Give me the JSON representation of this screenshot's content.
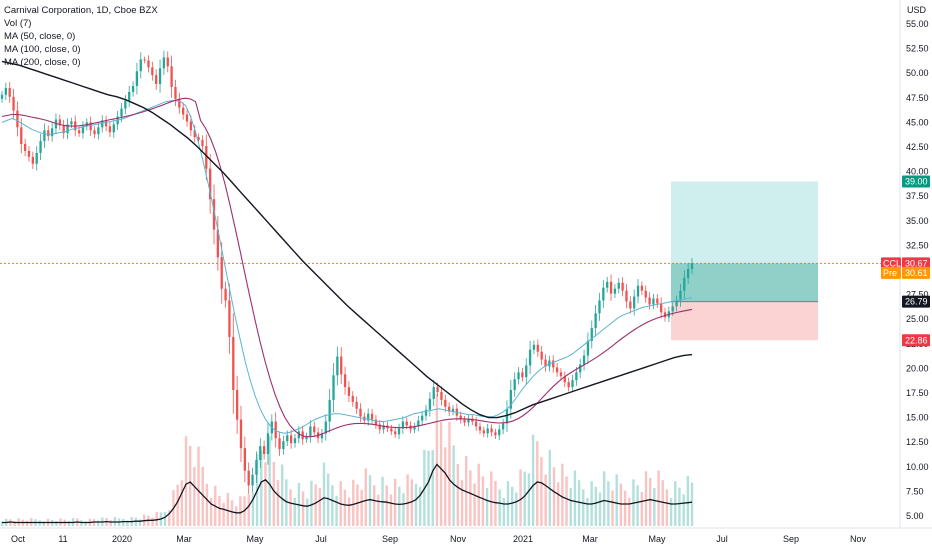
{
  "legend": {
    "title": "Carnival Corporation, 1D, Cboe BZX",
    "vol": "Vol (7)",
    "ma50": "MA (50, close, 0)",
    "ma100": "MA (100, close, 0)",
    "ma200": "MA (200, close, 0)"
  },
  "currency": "USD",
  "colors": {
    "up": "#26a69a",
    "down": "#ef5350",
    "ma50": "#5bb5d4",
    "ma100": "#9c2f6e",
    "ma200": "#131722",
    "vol_ma": "#131722",
    "profit_zone": "#cfeeee",
    "profit_zone_inner": "#8fd0c9",
    "loss_zone": "#fbd3d3",
    "price_line": "#ff6f3c"
  },
  "chart_data": {
    "type": "candlestick",
    "ylim": [
      4,
      56
    ],
    "y_ticks": [
      "55.00",
      "52.50",
      "50.00",
      "47.50",
      "45.00",
      "42.50",
      "40.00",
      "37.50",
      "35.00",
      "32.50",
      "30.00",
      "27.50",
      "25.00",
      "22.50",
      "20.00",
      "17.50",
      "15.00",
      "12.50",
      "10.00",
      "7.50",
      "5.00"
    ],
    "x_ticks": [
      "Oct",
      "11",
      "2020",
      "Mar",
      "May",
      "Jul",
      "Sep",
      "Nov",
      "2021",
      "Mar",
      "May",
      "Jul",
      "Sep",
      "Nov"
    ],
    "closes": [
      47.8,
      48.5,
      47.6,
      46.2,
      44.5,
      42.8,
      42.1,
      41.5,
      40.8,
      41.9,
      43.1,
      44.2,
      43.6,
      44.4,
      45.3,
      44.7,
      43.9,
      44.8,
      45.1,
      44.2,
      43.9,
      44.6,
      45.0,
      44.2,
      43.8,
      44.5,
      45.2,
      44.6,
      44.0,
      44.8,
      45.6,
      46.4,
      47.2,
      48.1,
      48.7,
      50.2,
      51.4,
      51.3,
      50.6,
      49.8,
      48.9,
      50.5,
      51.6,
      50.7,
      48.6,
      47.4,
      46.5,
      45.8,
      45.1,
      44.2,
      43.5,
      43.2,
      42.6,
      40.3,
      37.2,
      34.1,
      31.3,
      28.1,
      26.9,
      23.2,
      17.8,
      14.8,
      11.9,
      9.6,
      8.1,
      9.2,
      10.7,
      12.1,
      11.3,
      13.4,
      14.6,
      12.9,
      11.8,
      12.6,
      13.2,
      12.4,
      12.9,
      13.6,
      12.8,
      13.1,
      14.1,
      13.5,
      12.9,
      13.4,
      14.6,
      16.8,
      19.3,
      21.2,
      19.4,
      18.1,
      17.2,
      16.6,
      15.9,
      15.1,
      14.7,
      15.4,
      14.8,
      14.3,
      13.8,
      14.2,
      13.9,
      13.6,
      13.3,
      13.9,
      14.6,
      14.2,
      13.8,
      14.1,
      14.7,
      15.2,
      15.8,
      16.9,
      18.1,
      17.6,
      16.8,
      16.1,
      15.6,
      15.9,
      15.2,
      14.8,
      14.5,
      14.9,
      14.6,
      14.1,
      13.7,
      13.4,
      13.9,
      13.5,
      13.2,
      13.8,
      14.4,
      15.9,
      17.8,
      18.9,
      19.6,
      19.1,
      20.3,
      21.9,
      22.4,
      21.7,
      20.9,
      20.2,
      20.8,
      20.1,
      19.6,
      19.2,
      18.6,
      18.1,
      18.8,
      19.6,
      20.4,
      21.3,
      22.8,
      24.1,
      25.6,
      26.9,
      28.2,
      28.8,
      27.6,
      28.1,
      28.7,
      27.9,
      26.8,
      26.1,
      27.3,
      28.4,
      27.9,
      27.2,
      26.5,
      27.1,
      26.6,
      25.7,
      25.2,
      25.8,
      26.3,
      26.9,
      27.9,
      29.2,
      30.1,
      30.7
    ],
    "volume_index": [
      0.08,
      0.08,
      0.09,
      0.08,
      0.08,
      0.08,
      0.08,
      0.08,
      0.08,
      0.08,
      0.08,
      0.08,
      0.08,
      0.08,
      0.08,
      0.08,
      0.08,
      0.08,
      0.09,
      0.08,
      0.08,
      0.08,
      0.09,
      0.09,
      0.09,
      0.1,
      0.09,
      0.09,
      0.09,
      0.1,
      0.1,
      0.1,
      0.11,
      0.11,
      0.12,
      0.13,
      0.13,
      0.14,
      0.16,
      0.2,
      0.28,
      0.4,
      0.55,
      0.75,
      0.95,
      1.0,
      0.9,
      0.8,
      0.7,
      0.6,
      0.5,
      0.45,
      0.4,
      0.38,
      0.35,
      0.32,
      0.3,
      0.3,
      0.35,
      0.45,
      0.6,
      0.8,
      1.0,
      1.05,
      0.95,
      0.8,
      0.7,
      0.62,
      0.55,
      0.52,
      0.5,
      0.48,
      0.46,
      0.45,
      0.48,
      0.52,
      0.58,
      0.64,
      0.62,
      0.58,
      0.54,
      0.5,
      0.48,
      0.47,
      0.49,
      0.52,
      0.55,
      0.58,
      0.6,
      0.58,
      0.56,
      0.55,
      0.54,
      0.52,
      0.5,
      0.49,
      0.5,
      0.52,
      0.55,
      0.6,
      0.7,
      0.85,
      1.0,
      1.25,
      1.4,
      1.3,
      1.2,
      1.05,
      0.95,
      0.88,
      0.82,
      0.78,
      0.74,
      0.7,
      0.66,
      0.62,
      0.58,
      0.55,
      0.53,
      0.52,
      0.5,
      0.5,
      0.52,
      0.55,
      0.6,
      0.68,
      0.8,
      0.92,
      1.0,
      0.98,
      0.92,
      0.85,
      0.78,
      0.72,
      0.66,
      0.62,
      0.58,
      0.56,
      0.54,
      0.52,
      0.5,
      0.5,
      0.52,
      0.55,
      0.58,
      0.56,
      0.54,
      0.52,
      0.5,
      0.5,
      0.5,
      0.52,
      0.54,
      0.56,
      0.58,
      0.6,
      0.58,
      0.56,
      0.54,
      0.52,
      0.5,
      0.5,
      0.51,
      0.52,
      0.53,
      0.54
    ],
    "ma50": [
      45.0,
      45.2,
      45.4,
      45.2,
      44.9,
      44.6,
      44.3,
      44.1,
      43.9,
      43.8,
      43.8,
      43.9,
      44.0,
      44.1,
      44.3,
      44.4,
      44.5,
      44.6,
      44.7,
      44.8,
      44.9,
      45.0,
      45.1,
      45.2,
      45.3,
      45.5,
      45.7,
      45.9,
      46.1,
      46.3,
      46.5,
      46.7,
      46.9,
      47.1,
      47.2,
      47.2,
      47.1,
      46.7,
      45.6,
      44.0,
      42.1,
      40.0,
      37.7,
      35.3,
      32.8,
      30.2,
      27.7,
      25.2,
      22.9,
      20.7,
      18.8,
      17.2,
      15.9,
      14.9,
      14.2,
      13.7,
      13.5,
      13.4,
      13.5,
      13.7,
      13.9,
      14.2,
      14.5,
      14.8,
      15.0,
      15.2,
      15.3,
      15.4,
      15.4,
      15.3,
      15.2,
      15.1,
      15.0,
      14.9,
      14.8,
      14.7,
      14.6,
      14.6,
      14.7,
      14.8,
      14.9,
      15.0,
      15.2,
      15.4,
      15.5,
      15.6,
      15.7,
      15.8,
      15.9,
      15.8,
      15.7,
      15.6,
      15.5,
      15.4,
      15.3,
      15.3,
      15.2,
      15.1,
      15.1,
      15.1,
      15.3,
      15.6,
      16.0,
      16.6,
      17.3,
      18.0,
      18.6,
      19.2,
      19.7,
      20.1,
      20.4,
      20.6,
      20.8,
      21.0,
      21.2,
      21.5,
      21.9,
      22.3,
      22.7,
      23.1,
      23.5,
      23.9,
      24.3,
      24.7,
      25.1,
      25.4,
      25.6,
      25.8,
      26.0,
      26.2,
      26.3,
      26.4,
      26.5,
      26.6,
      26.7,
      26.8,
      26.9,
      27.0,
      27.1,
      27.2
    ],
    "ma200": [
      51.2,
      51.0,
      50.8,
      50.5,
      50.2,
      49.9,
      49.6,
      49.3,
      49.0,
      48.7,
      48.4,
      48.1,
      47.8,
      47.6,
      47.3,
      46.9,
      46.5,
      46.0,
      45.4,
      44.8,
      44.1,
      43.4,
      42.6,
      41.7,
      40.8,
      39.9,
      38.9,
      37.9,
      36.9,
      35.9,
      34.9,
      33.9,
      32.9,
      31.9,
      30.9,
      30.0,
      29.1,
      28.2,
      27.3,
      26.4,
      25.6,
      24.8,
      24.0,
      23.2,
      22.4,
      21.6,
      20.8,
      20.0,
      19.2,
      18.5,
      17.8,
      17.1,
      16.4,
      15.8,
      15.3,
      15.0,
      15.0,
      15.2,
      15.5,
      15.9,
      16.3,
      16.6,
      16.9,
      17.2,
      17.5,
      17.8,
      18.1,
      18.4,
      18.7,
      19.0,
      19.3,
      19.6,
      19.9,
      20.2,
      20.5,
      20.8,
      21.1,
      21.3,
      21.4
    ],
    "position": {
      "target": "39.00",
      "entry": "26.79",
      "stop": "22.86",
      "current": "30.67",
      "current_label": "CCL",
      "pre": "30.61",
      "pre_label": "Pre"
    }
  }
}
